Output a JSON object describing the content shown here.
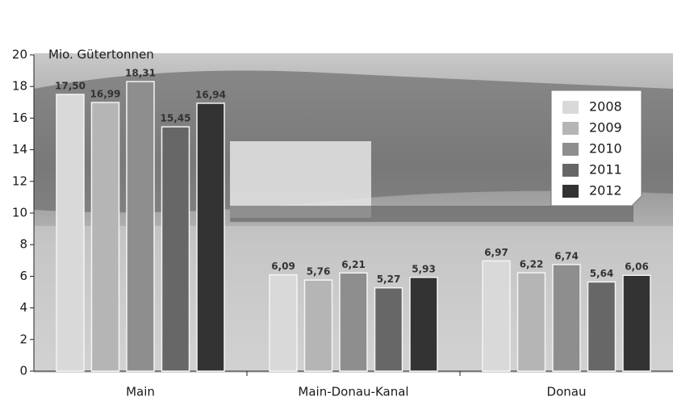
{
  "chart_data": {
    "type": "bar",
    "y_label": "Mio. Gütertonnen",
    "categories": [
      "Main",
      "Main-Donau-Kanal",
      "Donau"
    ],
    "series": [
      {
        "name": "2008",
        "color": "#d9d9d9",
        "values": [
          17.5,
          6.09,
          6.97
        ],
        "value_labels": [
          "17,50",
          "6,09",
          "6,97"
        ]
      },
      {
        "name": "2009",
        "color": "#b5b5b5",
        "values": [
          16.99,
          5.76,
          6.22
        ],
        "value_labels": [
          "16,99",
          "5,76",
          "6,22"
        ]
      },
      {
        "name": "2010",
        "color": "#8e8e8e",
        "values": [
          18.31,
          6.21,
          6.74
        ],
        "value_labels": [
          "18,31",
          "6,21",
          "6,74"
        ]
      },
      {
        "name": "2011",
        "color": "#676767",
        "values": [
          15.45,
          5.27,
          5.64
        ],
        "value_labels": [
          "15,45",
          "5,27",
          "5,64"
        ]
      },
      {
        "name": "2012",
        "color": "#333333",
        "values": [
          16.94,
          5.93,
          6.06
        ],
        "value_labels": [
          "16,94",
          "5,93",
          "6,06"
        ]
      }
    ],
    "ylim": [
      0,
      20
    ],
    "yticks": [
      0,
      2,
      4,
      6,
      8,
      10,
      12,
      14,
      16,
      18,
      20
    ],
    "legend": "top-right"
  }
}
